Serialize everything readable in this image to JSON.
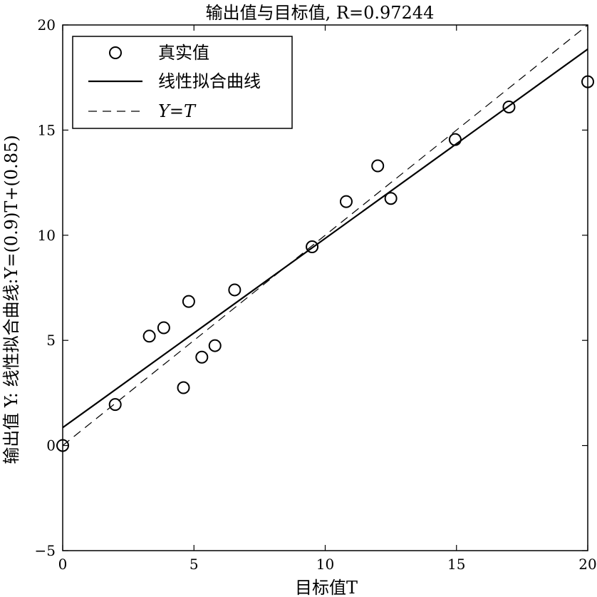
{
  "chart_data": {
    "type": "scatter",
    "title": "输出值与目标值, R=0.97244",
    "xlabel": "目标值T",
    "ylabel": "输出值 Y: 线性拟合曲线:Y=(0.9)T+(0.85)",
    "xlim": [
      0,
      20
    ],
    "ylim": [
      -5,
      20
    ],
    "xticks": [
      0,
      5,
      10,
      15,
      20
    ],
    "yticks": [
      -5,
      0,
      5,
      10,
      15,
      20
    ],
    "grid": false,
    "legend_position": "top-left",
    "series": [
      {
        "name": "真实值",
        "kind": "scatter",
        "marker": "open-circle",
        "points": [
          [
            0,
            0
          ],
          [
            2.0,
            1.95
          ],
          [
            3.3,
            5.2
          ],
          [
            3.85,
            5.6
          ],
          [
            4.6,
            2.75
          ],
          [
            4.8,
            6.85
          ],
          [
            5.3,
            4.2
          ],
          [
            5.8,
            4.75
          ],
          [
            6.55,
            7.4
          ],
          [
            9.5,
            9.45
          ],
          [
            10.8,
            11.6
          ],
          [
            12.0,
            13.3
          ],
          [
            12.5,
            11.75
          ],
          [
            14.95,
            14.55
          ],
          [
            17.0,
            16.1
          ],
          [
            20.0,
            17.3
          ]
        ]
      },
      {
        "name": "线性拟合曲线",
        "kind": "line",
        "style": "solid",
        "slope": 0.9,
        "intercept": 0.85
      },
      {
        "name": "Y=T",
        "kind": "line",
        "style": "dashed",
        "slope": 1,
        "intercept": 0
      }
    ]
  }
}
